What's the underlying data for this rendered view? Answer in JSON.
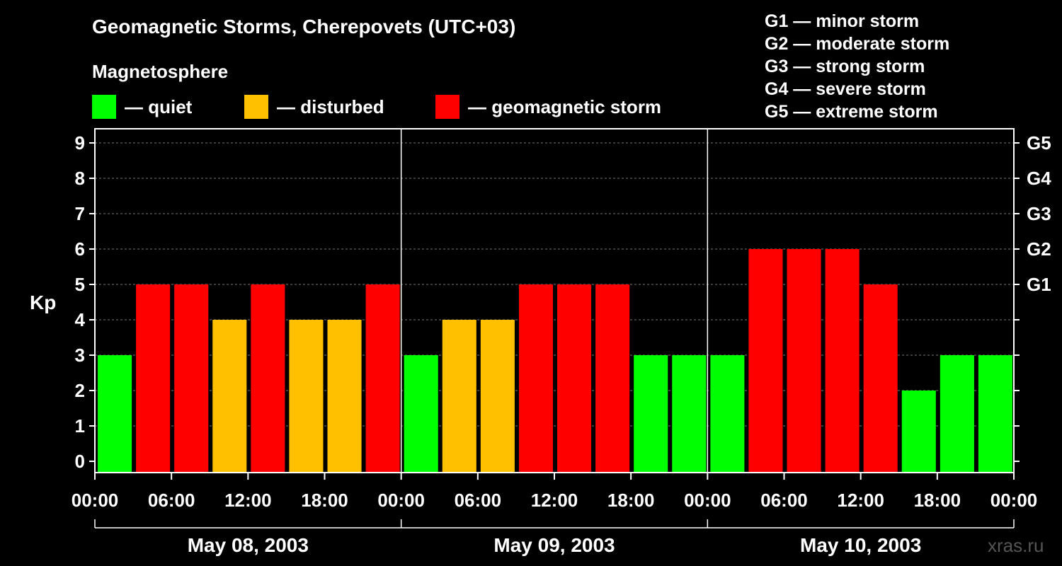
{
  "header": {
    "title": "Geomagnetic Storms, Cherepovets (UTC+03)",
    "subtitle": "Magnetosphere"
  },
  "legend": [
    {
      "label": "— quiet",
      "color": "#00ff00"
    },
    {
      "label": "— disturbed",
      "color": "#ffc000"
    },
    {
      "label": "— geomagnetic storm",
      "color": "#ff0000"
    }
  ],
  "storm_levels": [
    "G1 — minor storm",
    "G2 — moderate storm",
    "G3 — strong storm",
    "G4 — severe storm",
    "G5 — extreme storm"
  ],
  "watermark": "xras.ru",
  "chart_data": {
    "type": "bar",
    "ylabel": "Kp",
    "ylim": [
      0,
      9
    ],
    "y_ticks": [
      "0",
      "1",
      "2",
      "3",
      "4",
      "5",
      "6",
      "7",
      "8",
      "9"
    ],
    "right_ticks": [
      {
        "kp": 5,
        "label": "G1"
      },
      {
        "kp": 6,
        "label": "G2"
      },
      {
        "kp": 7,
        "label": "G3"
      },
      {
        "kp": 8,
        "label": "G4"
      },
      {
        "kp": 9,
        "label": "G5"
      }
    ],
    "x_tick_labels": [
      "00:00",
      "06:00",
      "12:00",
      "18:00",
      "00:00",
      "06:00",
      "12:00",
      "18:00",
      "00:00",
      "06:00",
      "12:00",
      "18:00",
      "00:00"
    ],
    "days": [
      "May 08, 2003",
      "May 09, 2003",
      "May 10, 2003"
    ],
    "interval_hours": 3,
    "values": [
      3,
      5,
      5,
      4,
      5,
      4,
      4,
      5,
      3,
      4,
      4,
      5,
      5,
      5,
      3,
      3,
      3,
      6,
      6,
      6,
      5,
      2,
      3,
      3
    ],
    "colors": {
      "quiet": "#00ff00",
      "disturbed": "#ffc000",
      "storm": "#ff0000"
    },
    "grid": true,
    "legend_position": "top"
  }
}
